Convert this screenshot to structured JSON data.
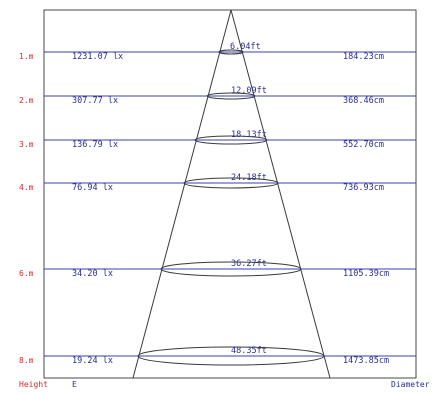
{
  "rows": [
    {
      "height": "1.m",
      "lux": "1231.07 lx",
      "feet": "6.04ft",
      "diameter": "184.23cm"
    },
    {
      "height": "2.m",
      "lux": "307.77 lx",
      "feet": "12.09ft",
      "diameter": "368.46cm"
    },
    {
      "height": "3.m",
      "lux": "136.79 lx",
      "feet": "18.13ft",
      "diameter": "552.70cm"
    },
    {
      "height": "4.m",
      "lux": "76.94 lx",
      "feet": "24.18ft",
      "diameter": "736.93cm"
    },
    {
      "height": "6.m",
      "lux": "34.20 lx",
      "feet": "36.27ft",
      "diameter": "1105.39cm"
    },
    {
      "height": "8.m",
      "lux": "19.24 lx",
      "feet": "48.35ft",
      "diameter": "1473.85cm"
    }
  ],
  "footer": {
    "height_label": "Height",
    "e_label": "E",
    "diameter_label": "Diameter"
  },
  "colors": {
    "line": "#3b3fb0",
    "height_text": "#d8282e",
    "data_text": "#2a2f8f",
    "frame": "#4a4a4a"
  }
}
